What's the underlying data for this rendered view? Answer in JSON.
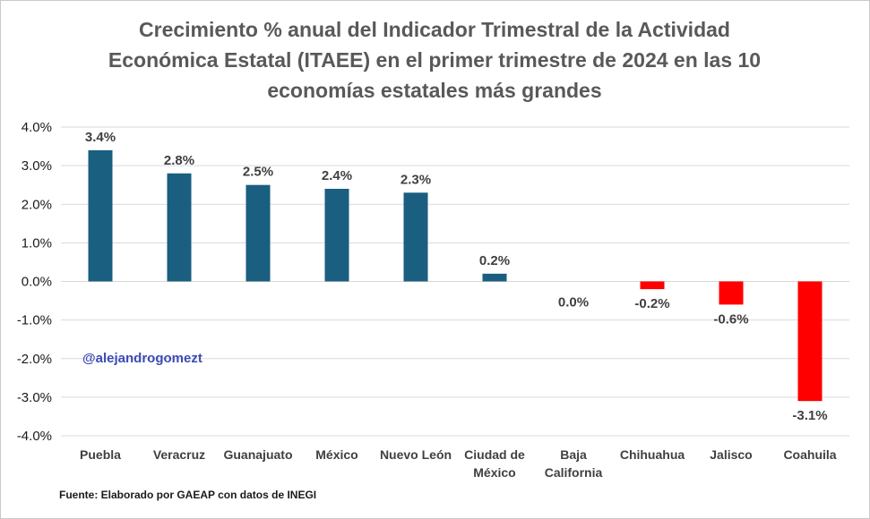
{
  "chart_data": {
    "type": "bar",
    "title_lines": [
      "Crecimiento % anual del Indicador Trimestral de la Actividad",
      "Económica Estatal (ITAEE) en el primer trimestre de 2024 en las 10",
      "economías estatales más grandes"
    ],
    "categories": [
      [
        "Puebla"
      ],
      [
        "Veracruz"
      ],
      [
        "Guanajuato"
      ],
      [
        "México"
      ],
      [
        "Nuevo León"
      ],
      [
        "Ciudad de",
        "México"
      ],
      [
        "Baja",
        "California"
      ],
      [
        "Chihuahua"
      ],
      [
        "Jalisco"
      ],
      [
        "Coahuila"
      ]
    ],
    "values": [
      3.4,
      2.8,
      2.5,
      2.4,
      2.3,
      0.2,
      0.0,
      -0.2,
      -0.6,
      -3.1
    ],
    "data_labels": [
      "3.4%",
      "2.8%",
      "2.5%",
      "2.4%",
      "2.3%",
      "0.2%",
      "0.0%",
      "-0.2%",
      "-0.6%",
      "-3.1%"
    ],
    "ylim": [
      -4.0,
      4.0
    ],
    "yticks": [
      4.0,
      3.0,
      2.0,
      1.0,
      0.0,
      -1.0,
      -2.0,
      -3.0,
      -4.0
    ],
    "ytick_labels": [
      "4.0%",
      "3.0%",
      "2.0%",
      "1.0%",
      "0.0%",
      "-1.0%",
      "-2.0%",
      "-3.0%",
      "-4.0%"
    ],
    "xlabel": "",
    "ylabel": "",
    "grid": true,
    "legend": "none",
    "colors": {
      "positive": "#1a5e80",
      "negative": "#ff0000",
      "grid": "#d9d9d9"
    }
  },
  "watermark": "@alejandrogomezt",
  "source": "Fuente: Elaborado por GAEAP con datos de INEGI"
}
